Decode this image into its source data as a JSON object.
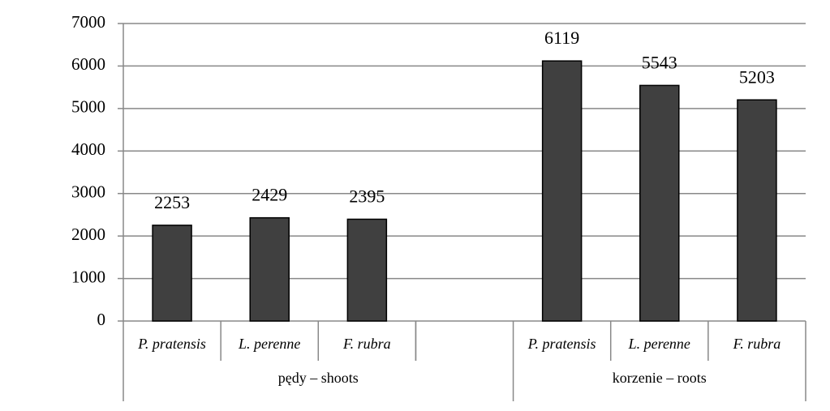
{
  "chart_data": {
    "type": "bar",
    "color": "#404040",
    "groups": [
      {
        "name": "pędy – shoots",
        "categories": [
          "P. pratensis",
          "L. perenne",
          "F. rubra",
          null
        ],
        "values": [
          2253,
          2429,
          2395,
          null
        ]
      },
      {
        "name": "korzenie – roots",
        "categories": [
          "P. pratensis",
          "L. perenne",
          "F. rubra"
        ],
        "values": [
          6119,
          5543,
          5203
        ]
      }
    ],
    "ylim": [
      0,
      7000
    ],
    "yticks": [
      0,
      1000,
      2000,
      3000,
      4000,
      5000,
      6000,
      7000
    ],
    "grid": true
  }
}
